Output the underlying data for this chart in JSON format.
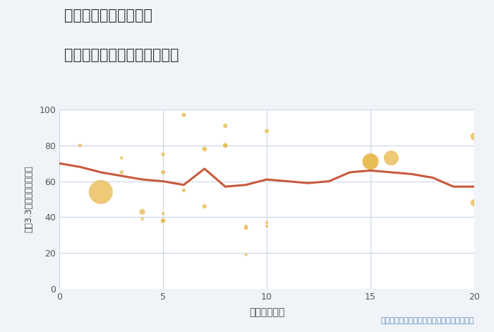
{
  "title_line1": "三重県松阪市田原町の",
  "title_line2": "駅距離別中古マンション価格",
  "xlabel": "駅距離（分）",
  "ylabel": "坪（3.3㎡）単価（万円）",
  "annotation": "円の大きさは、取引のあった物件面積を示す",
  "xlim": [
    0,
    20
  ],
  "ylim": [
    0,
    100
  ],
  "xticks": [
    0,
    5,
    10,
    15,
    20
  ],
  "yticks": [
    0,
    20,
    40,
    60,
    80,
    100
  ],
  "bg_color": "#f0f4f8",
  "plot_bg_color": "#ffffff",
  "grid_color": "#c8d8e8",
  "line_color": "#c85a3c",
  "scatter_color": "#e8b84b",
  "scatter_alpha": 0.75,
  "line_points_x": [
    0,
    1,
    2,
    3,
    4,
    5,
    6,
    7,
    8,
    9,
    10,
    11,
    12,
    13,
    14,
    15,
    16,
    17,
    18,
    19,
    20
  ],
  "line_points_y": [
    70,
    68,
    65,
    63,
    61,
    60,
    58,
    67,
    57,
    58,
    61,
    60,
    59,
    60,
    65,
    66,
    65,
    64,
    62,
    57,
    57
  ],
  "scatter_x": [
    1,
    2,
    3,
    3,
    4,
    4,
    5,
    5,
    5,
    5,
    5,
    6,
    6,
    7,
    7,
    8,
    8,
    8,
    9,
    9,
    9,
    10,
    10,
    10,
    15,
    15,
    16,
    20,
    20
  ],
  "scatter_y": [
    80,
    54,
    73,
    65,
    39,
    43,
    65,
    75,
    38,
    38,
    42,
    97,
    55,
    78,
    46,
    91,
    80,
    80,
    35,
    34,
    19,
    88,
    35,
    37,
    71,
    71,
    73,
    85,
    48
  ],
  "scatter_size": [
    15,
    600,
    10,
    15,
    10,
    35,
    20,
    15,
    10,
    25,
    10,
    20,
    15,
    25,
    20,
    20,
    25,
    15,
    10,
    20,
    10,
    20,
    10,
    10,
    280,
    250,
    230,
    60,
    55
  ]
}
